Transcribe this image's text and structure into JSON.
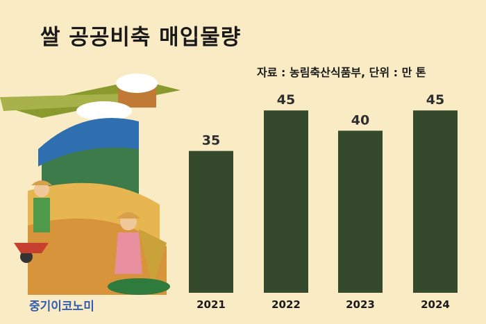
{
  "title": "쌀 공공비축 매입물량",
  "source_note": "자료 : 농림축산식품부, 단위 : 만 톤",
  "brand": "중기이코노미",
  "colors": {
    "bar": "#354a2c",
    "background": "#f9ebc4"
  },
  "chart_data": {
    "type": "bar",
    "categories": [
      "2021",
      "2022",
      "2023",
      "2024"
    ],
    "values": [
      35,
      45,
      40,
      45
    ],
    "data_labels": [
      "35",
      "45",
      "40",
      "45"
    ],
    "ylim": [
      0,
      50
    ],
    "grid": false,
    "legend": "none"
  }
}
